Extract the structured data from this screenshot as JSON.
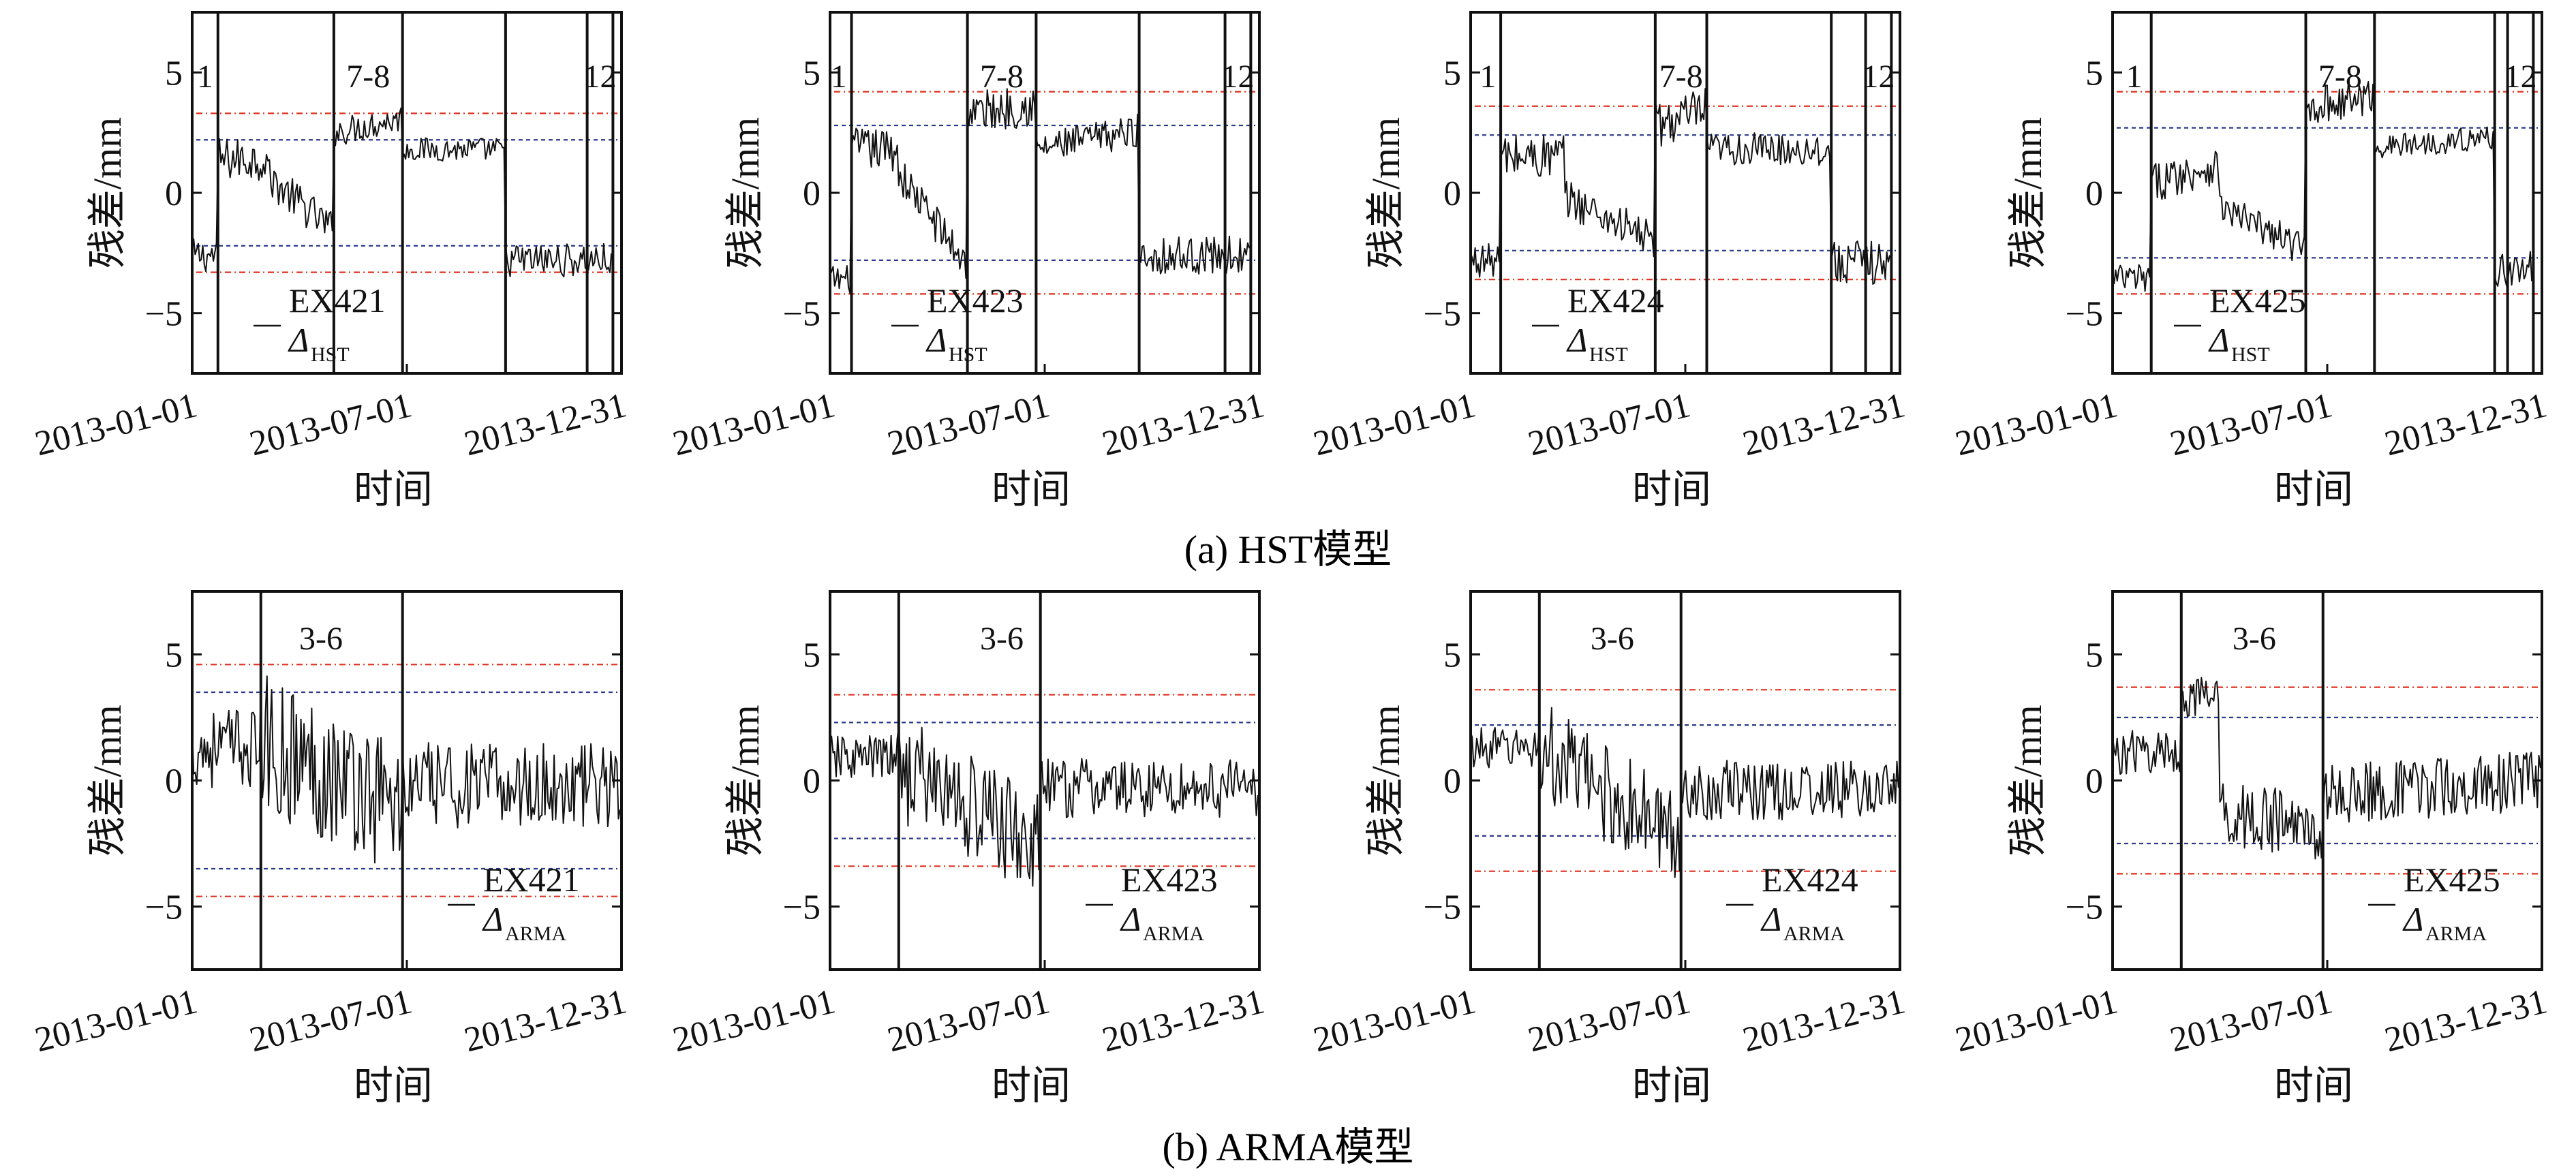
{
  "figure": {
    "caption_a": "(a) HST模型",
    "caption_b": "(b) ARMA模型"
  },
  "style": {
    "line_color": "#111111",
    "inner_threshold_color": "#2b3a8c",
    "outer_threshold_color": "#e0301e",
    "frame_color": "#111111"
  },
  "chart_data": [
    {
      "type": "line",
      "panel": "a1",
      "row": "HST",
      "ylabel": "残差/mm",
      "xlabel": "时间",
      "ylim": [
        -7.5,
        7.5
      ],
      "yticks": [
        -5,
        0,
        5
      ],
      "xticks": [
        "2013-01-01",
        "2013-07-01",
        "2013-12-31"
      ],
      "legend": {
        "name": "EX421",
        "symbol": "Δ",
        "sub": "HST"
      },
      "vlines": [
        0,
        0.06,
        0.33,
        0.49,
        0.73,
        0.92,
        0.98
      ],
      "zones": [
        {
          "label": "1",
          "x": 0.03
        },
        {
          "label": "7-8",
          "x": 0.41
        },
        {
          "label": "12",
          "x": 0.95
        }
      ],
      "thresholds": {
        "inner": [
          -2.2,
          2.2
        ],
        "outer": [
          -3.3,
          3.3
        ]
      },
      "segments": [
        {
          "x0": 0.0,
          "x1": 0.06,
          "level": -2.6,
          "noise": 0.7,
          "trend": 0
        },
        {
          "x0": 0.06,
          "x1": 0.18,
          "level": 1.4,
          "noise": 0.9,
          "trend": 0
        },
        {
          "x0": 0.18,
          "x1": 0.33,
          "level": 0.6,
          "noise": 0.8,
          "trend": -2.2
        },
        {
          "x0": 0.33,
          "x1": 0.49,
          "level": 2.5,
          "noise": 0.6,
          "trend": 0.6
        },
        {
          "x0": 0.49,
          "x1": 0.73,
          "level": 1.8,
          "noise": 0.5,
          "trend": 0
        },
        {
          "x0": 0.73,
          "x1": 0.98,
          "level": -2.8,
          "noise": 0.7,
          "trend": 0
        }
      ]
    },
    {
      "type": "line",
      "panel": "a2",
      "row": "HST",
      "ylabel": "残差/mm",
      "xlabel": "时间",
      "ylim": [
        -7.5,
        7.5
      ],
      "yticks": [
        -5,
        0,
        5
      ],
      "xticks": [
        "2013-01-01",
        "2013-07-01",
        "2013-12-31"
      ],
      "legend": {
        "name": "EX423",
        "symbol": "Δ",
        "sub": "HST"
      },
      "vlines": [
        0,
        0.05,
        0.32,
        0.48,
        0.72,
        0.92,
        0.98
      ],
      "zones": [
        {
          "label": "1",
          "x": 0.02
        },
        {
          "label": "7-8",
          "x": 0.4
        },
        {
          "label": "12",
          "x": 0.95
        }
      ],
      "thresholds": {
        "inner": [
          -2.8,
          2.8
        ],
        "outer": [
          -4.2,
          4.2
        ]
      },
      "segments": [
        {
          "x0": 0.0,
          "x1": 0.05,
          "level": -3.6,
          "noise": 0.6,
          "trend": 0
        },
        {
          "x0": 0.05,
          "x1": 0.16,
          "level": 1.8,
          "noise": 0.9,
          "trend": 0
        },
        {
          "x0": 0.16,
          "x1": 0.32,
          "level": 0.8,
          "noise": 0.8,
          "trend": -3.8
        },
        {
          "x0": 0.32,
          "x1": 0.48,
          "level": 3.3,
          "noise": 0.9,
          "trend": 0.4
        },
        {
          "x0": 0.48,
          "x1": 0.72,
          "level": 1.8,
          "noise": 0.7,
          "trend": 0.8
        },
        {
          "x0": 0.72,
          "x1": 0.98,
          "level": -2.6,
          "noise": 0.8,
          "trend": 0
        }
      ]
    },
    {
      "type": "line",
      "panel": "a3",
      "row": "HST",
      "ylabel": "残差/mm",
      "xlabel": "时间",
      "ylim": [
        -7.5,
        7.5
      ],
      "yticks": [
        -5,
        0,
        5
      ],
      "xticks": [
        "2013-01-01",
        "2013-07-01",
        "2013-12-31"
      ],
      "legend": {
        "name": "EX424",
        "symbol": "Δ",
        "sub": "HST"
      },
      "vlines": [
        0,
        0.07,
        0.43,
        0.55,
        0.84,
        0.92,
        0.98
      ],
      "zones": [
        {
          "label": "1",
          "x": 0.04
        },
        {
          "label": "7-8",
          "x": 0.49
        },
        {
          "label": "12",
          "x": 0.95
        }
      ],
      "thresholds": {
        "inner": [
          -2.4,
          2.4
        ],
        "outer": [
          -3.6,
          3.6
        ]
      },
      "segments": [
        {
          "x0": 0.0,
          "x1": 0.07,
          "level": -2.8,
          "noise": 0.7,
          "trend": 0
        },
        {
          "x0": 0.07,
          "x1": 0.22,
          "level": 1.5,
          "noise": 1.0,
          "trend": 0
        },
        {
          "x0": 0.22,
          "x1": 0.43,
          "level": -0.2,
          "noise": 0.8,
          "trend": -1.8
        },
        {
          "x0": 0.43,
          "x1": 0.55,
          "level": 2.8,
          "noise": 1.0,
          "trend": 0.6
        },
        {
          "x0": 0.55,
          "x1": 0.84,
          "level": 1.8,
          "noise": 0.7,
          "trend": 0
        },
        {
          "x0": 0.84,
          "x1": 0.98,
          "level": -2.9,
          "noise": 0.9,
          "trend": 0
        }
      ]
    },
    {
      "type": "line",
      "panel": "a4",
      "row": "HST",
      "ylabel": "残差/mm",
      "xlabel": "时间",
      "ylim": [
        -7.5,
        7.5
      ],
      "yticks": [
        -5,
        0,
        5
      ],
      "xticks": [
        "2013-01-01",
        "2013-07-01",
        "2013-12-31"
      ],
      "legend": {
        "name": "EX425",
        "symbol": "Δ",
        "sub": "HST"
      },
      "vlines": [
        0,
        0.09,
        0.45,
        0.61,
        0.89,
        0.92,
        0.98
      ],
      "zones": [
        {
          "label": "1",
          "x": 0.05
        },
        {
          "label": "7-8",
          "x": 0.53
        },
        {
          "label": "12",
          "x": 0.95
        }
      ],
      "thresholds": {
        "inner": [
          -2.7,
          2.7
        ],
        "outer": [
          -4.2,
          4.2
        ]
      },
      "segments": [
        {
          "x0": 0.0,
          "x1": 0.09,
          "level": -3.6,
          "noise": 0.7,
          "trend": 0
        },
        {
          "x0": 0.09,
          "x1": 0.25,
          "level": 0.4,
          "noise": 0.8,
          "trend": 0.8
        },
        {
          "x0": 0.25,
          "x1": 0.45,
          "level": -0.6,
          "noise": 0.7,
          "trend": -1.8
        },
        {
          "x0": 0.45,
          "x1": 0.61,
          "level": 3.6,
          "noise": 0.8,
          "trend": 0.4
        },
        {
          "x0": 0.61,
          "x1": 0.89,
          "level": 1.9,
          "noise": 0.5,
          "trend": 0.4
        },
        {
          "x0": 0.89,
          "x1": 0.98,
          "level": -3.2,
          "noise": 0.8,
          "trend": 0
        }
      ]
    },
    {
      "type": "line",
      "panel": "b1",
      "row": "ARMA",
      "ylabel": "残差/mm",
      "xlabel": "时间",
      "ylim": [
        -7.5,
        7.5
      ],
      "yticks": [
        -5,
        0,
        5
      ],
      "xticks": [
        "2013-01-01",
        "2013-07-01",
        "2013-12-31"
      ],
      "legend": {
        "name": "EX421",
        "symbol": "Δ",
        "sub": "ARMA"
      },
      "vlines": [
        0.16,
        0.49
      ],
      "zones": [
        {
          "label": "3-6",
          "x": 0.3
        }
      ],
      "thresholds": {
        "inner": [
          -3.5,
          3.5
        ],
        "outer": [
          -4.6,
          4.6
        ]
      },
      "segments": [
        {
          "x0": 0.0,
          "x1": 0.16,
          "level": 1.3,
          "noise": 1.6,
          "trend": 0
        },
        {
          "x0": 0.16,
          "x1": 0.49,
          "level": 1.5,
          "noise": 2.8,
          "trend": -2.5
        },
        {
          "x0": 0.49,
          "x1": 1.0,
          "level": -0.2,
          "noise": 1.7,
          "trend": 0
        }
      ]
    },
    {
      "type": "line",
      "panel": "b2",
      "row": "ARMA",
      "ylabel": "残差/mm",
      "xlabel": "时间",
      "ylim": [
        -7.5,
        7.5
      ],
      "yticks": [
        -5,
        0,
        5
      ],
      "xticks": [
        "2013-01-01",
        "2013-07-01",
        "2013-12-31"
      ],
      "legend": {
        "name": "EX423",
        "symbol": "Δ",
        "sub": "ARMA"
      },
      "vlines": [
        0.16,
        0.49
      ],
      "zones": [
        {
          "label": "3-6",
          "x": 0.4
        }
      ],
      "thresholds": {
        "inner": [
          -2.3,
          2.3
        ],
        "outer": [
          -3.4,
          3.4
        ]
      },
      "segments": [
        {
          "x0": 0.0,
          "x1": 0.16,
          "level": 0.9,
          "noise": 0.9,
          "trend": 0
        },
        {
          "x0": 0.16,
          "x1": 0.49,
          "level": 0.6,
          "noise": 2.2,
          "trend": -3.2
        },
        {
          "x0": 0.49,
          "x1": 1.0,
          "level": -0.3,
          "noise": 1.2,
          "trend": 0
        }
      ]
    },
    {
      "type": "line",
      "panel": "b3",
      "row": "ARMA",
      "ylabel": "残差/mm",
      "xlabel": "时间",
      "ylim": [
        -7.5,
        7.5
      ],
      "yticks": [
        -5,
        0,
        5
      ],
      "xticks": [
        "2013-01-01",
        "2013-07-01",
        "2013-12-31"
      ],
      "legend": {
        "name": "EX424",
        "symbol": "Δ",
        "sub": "ARMA"
      },
      "vlines": [
        0.16,
        0.49
      ],
      "zones": [
        {
          "label": "3-6",
          "x": 0.33
        }
      ],
      "thresholds": {
        "inner": [
          -2.2,
          2.2
        ],
        "outer": [
          -3.6,
          3.6
        ]
      },
      "segments": [
        {
          "x0": 0.0,
          "x1": 0.16,
          "level": 1.3,
          "noise": 0.8,
          "trend": 0
        },
        {
          "x0": 0.16,
          "x1": 0.49,
          "level": 1.2,
          "noise": 2.0,
          "trend": -3.6
        },
        {
          "x0": 0.49,
          "x1": 1.0,
          "level": -0.4,
          "noise": 1.2,
          "trend": 0
        }
      ]
    },
    {
      "type": "line",
      "panel": "b4",
      "row": "ARMA",
      "ylabel": "残差/mm",
      "xlabel": "时间",
      "ylim": [
        -7.5,
        7.5
      ],
      "yticks": [
        -5,
        0,
        5
      ],
      "xticks": [
        "2013-01-01",
        "2013-07-01",
        "2013-12-31"
      ],
      "legend": {
        "name": "EX425",
        "symbol": "Δ",
        "sub": "ARMA"
      },
      "vlines": [
        0.16,
        0.49
      ],
      "zones": [
        {
          "label": "3-6",
          "x": 0.33
        }
      ],
      "thresholds": {
        "inner": [
          -2.5,
          2.5
        ],
        "outer": [
          -3.7,
          3.7
        ]
      },
      "segments": [
        {
          "x0": 0.0,
          "x1": 0.16,
          "level": 1.1,
          "noise": 0.9,
          "trend": 0
        },
        {
          "x0": 0.16,
          "x1": 0.25,
          "level": 3.3,
          "noise": 0.8,
          "trend": 0
        },
        {
          "x0": 0.25,
          "x1": 0.49,
          "level": -1.2,
          "noise": 1.4,
          "trend": -0.8
        },
        {
          "x0": 0.49,
          "x1": 1.0,
          "level": -0.6,
          "noise": 1.2,
          "trend": 0.6
        }
      ]
    }
  ]
}
